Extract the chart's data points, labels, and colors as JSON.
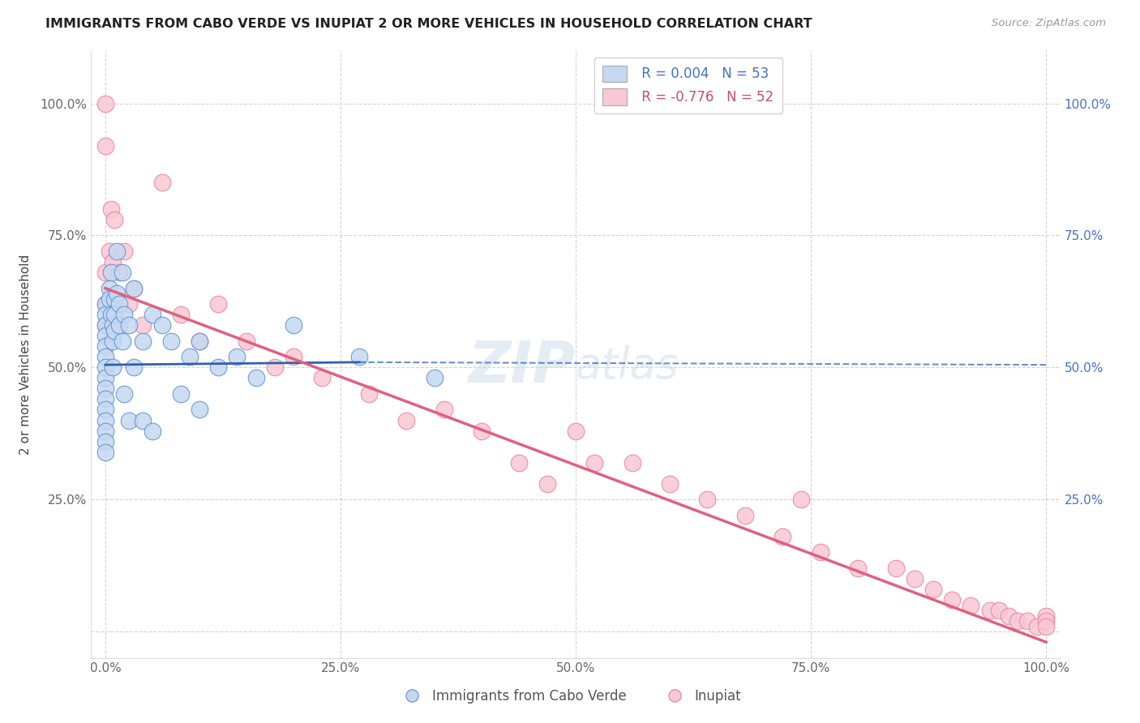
{
  "title": "IMMIGRANTS FROM CABO VERDE VS INUPIAT 2 OR MORE VEHICLES IN HOUSEHOLD CORRELATION CHART",
  "source": "Source: ZipAtlas.com",
  "ylabel": "2 or more Vehicles in Household",
  "x_tick_labels": [
    "0.0%",
    "25.0%",
    "50.0%",
    "75.0%",
    "100.0%"
  ],
  "x_tick_vals": [
    0.0,
    0.25,
    0.5,
    0.75,
    1.0
  ],
  "y_tick_labels": [
    "",
    "25.0%",
    "50.0%",
    "75.0%",
    "100.0%"
  ],
  "y_tick_vals": [
    0.0,
    0.25,
    0.5,
    0.75,
    1.0
  ],
  "right_y_tick_labels": [
    "",
    "25.0%",
    "50.0%",
    "75.0%",
    "100.0%"
  ],
  "right_y_tick_vals": [
    0.0,
    0.25,
    0.5,
    0.75,
    1.0
  ],
  "blue_R": 0.004,
  "blue_N": 53,
  "pink_R": -0.776,
  "pink_N": 52,
  "blue_color": "#c5d8f0",
  "pink_color": "#f8c8d4",
  "blue_edge_color": "#5b8fd4",
  "pink_edge_color": "#e8809a",
  "blue_line_color": "#3060b0",
  "pink_line_color": "#e06080",
  "legend_blue_face": "#c5d8f0",
  "legend_pink_face": "#f8c8d4",
  "background_color": "#ffffff",
  "grid_color": "#c8c8c8",
  "watermark_color": "#c8dce8",
  "xlim": [
    -0.015,
    1.015
  ],
  "ylim": [
    -0.05,
    1.1
  ],
  "blue_line_y0": 0.505,
  "blue_line_y1": 0.505,
  "pink_line_y0": 0.65,
  "pink_line_y1": -0.02,
  "blue_scatter_x": [
    0.0,
    0.0,
    0.0,
    0.0,
    0.0,
    0.0,
    0.0,
    0.0,
    0.0,
    0.0,
    0.0,
    0.0,
    0.0,
    0.0,
    0.0,
    0.004,
    0.004,
    0.006,
    0.006,
    0.008,
    0.008,
    0.008,
    0.01,
    0.01,
    0.01,
    0.012,
    0.012,
    0.015,
    0.015,
    0.018,
    0.018,
    0.02,
    0.02,
    0.025,
    0.025,
    0.03,
    0.03,
    0.04,
    0.04,
    0.05,
    0.05,
    0.06,
    0.07,
    0.08,
    0.09,
    0.1,
    0.1,
    0.12,
    0.14,
    0.16,
    0.2,
    0.27,
    0.35
  ],
  "blue_scatter_y": [
    0.62,
    0.6,
    0.58,
    0.56,
    0.54,
    0.52,
    0.5,
    0.48,
    0.46,
    0.44,
    0.42,
    0.4,
    0.38,
    0.36,
    0.34,
    0.65,
    0.63,
    0.68,
    0.6,
    0.58,
    0.55,
    0.5,
    0.63,
    0.6,
    0.57,
    0.72,
    0.64,
    0.62,
    0.58,
    0.68,
    0.55,
    0.6,
    0.45,
    0.58,
    0.4,
    0.65,
    0.5,
    0.55,
    0.4,
    0.6,
    0.38,
    0.58,
    0.55,
    0.45,
    0.52,
    0.55,
    0.42,
    0.5,
    0.52,
    0.48,
    0.58,
    0.52,
    0.48
  ],
  "pink_scatter_x": [
    0.0,
    0.0,
    0.0,
    0.0,
    0.0,
    0.004,
    0.006,
    0.008,
    0.01,
    0.015,
    0.02,
    0.025,
    0.03,
    0.04,
    0.06,
    0.08,
    0.1,
    0.12,
    0.15,
    0.18,
    0.2,
    0.23,
    0.28,
    0.32,
    0.36,
    0.4,
    0.44,
    0.47,
    0.5,
    0.52,
    0.56,
    0.6,
    0.64,
    0.68,
    0.72,
    0.74,
    0.76,
    0.8,
    0.84,
    0.86,
    0.88,
    0.9,
    0.92,
    0.94,
    0.95,
    0.96,
    0.97,
    0.98,
    0.99,
    1.0,
    1.0,
    1.0
  ],
  "pink_scatter_y": [
    1.0,
    0.92,
    0.68,
    0.62,
    0.58,
    0.72,
    0.8,
    0.7,
    0.78,
    0.68,
    0.72,
    0.62,
    0.65,
    0.58,
    0.85,
    0.6,
    0.55,
    0.62,
    0.55,
    0.5,
    0.52,
    0.48,
    0.45,
    0.4,
    0.42,
    0.38,
    0.32,
    0.28,
    0.38,
    0.32,
    0.32,
    0.28,
    0.25,
    0.22,
    0.18,
    0.25,
    0.15,
    0.12,
    0.12,
    0.1,
    0.08,
    0.06,
    0.05,
    0.04,
    0.04,
    0.03,
    0.02,
    0.02,
    0.01,
    0.03,
    0.02,
    0.01
  ]
}
